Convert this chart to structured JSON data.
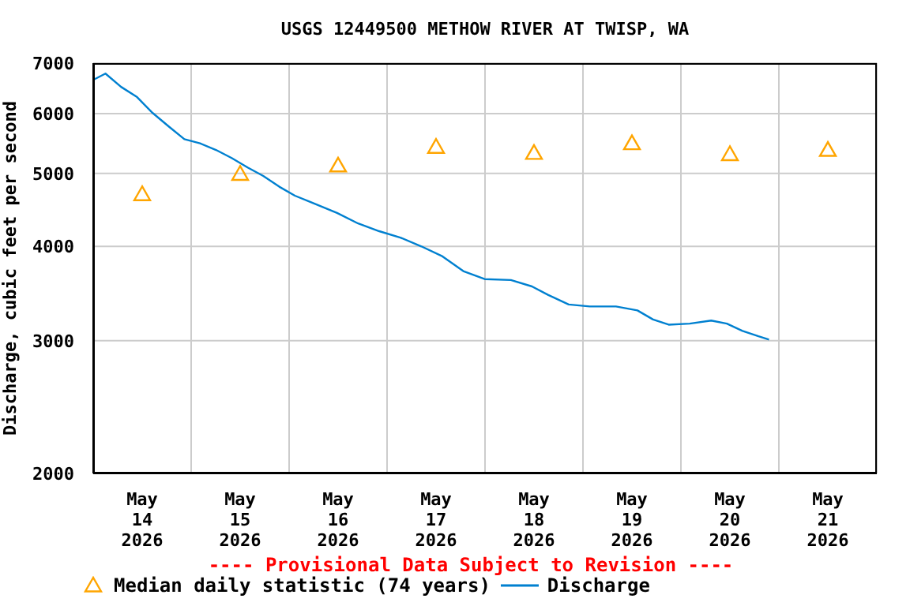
{
  "chart_data": {
    "type": "line",
    "title": "USGS 12449500 METHOW RIVER AT TWISP, WA",
    "ylabel": "Discharge, cubic feet per second",
    "annotations": [
      "---- Provisional Data Subject to Revision ----"
    ],
    "log": "y",
    "grid": true,
    "legend": "bottom",
    "xlim": [
      "2026-05-14T00:00",
      "2026-05-22T00:00"
    ],
    "xticks": [
      {
        "value": "2026-05-14T00:00",
        "label": null
      },
      {
        "value": "2026-05-14T12:00",
        "label": "May\n14\n2026"
      },
      {
        "value": "2026-05-15T00:00",
        "label": null
      },
      {
        "value": "2026-05-15T12:00",
        "label": "May\n15\n2026"
      },
      {
        "value": "2026-05-16T00:00",
        "label": null
      },
      {
        "value": "2026-05-16T12:00",
        "label": "May\n16\n2026"
      },
      {
        "value": "2026-05-17T00:00",
        "label": null
      },
      {
        "value": "2026-05-17T12:00",
        "label": "May\n17\n2026"
      },
      {
        "value": "2026-05-18T00:00",
        "label": null
      },
      {
        "value": "2026-05-18T12:00",
        "label": "May\n18\n2026"
      },
      {
        "value": "2026-05-19T00:00",
        "label": null
      },
      {
        "value": "2026-05-19T12:00",
        "label": "May\n19\n2026"
      },
      {
        "value": "2026-05-20T00:00",
        "label": null
      },
      {
        "value": "2026-05-20T12:00",
        "label": "May\n20\n2026"
      },
      {
        "value": "2026-05-21T00:00",
        "label": null
      },
      {
        "value": "2026-05-21T12:00",
        "label": "May\n21\n2026"
      },
      {
        "value": "2026-05-22T00:00",
        "label": null
      }
    ],
    "ylim": [
      2000,
      7000
    ],
    "yticks": [
      2000,
      3000,
      4000,
      5000,
      6000,
      7000
    ],
    "series": [
      {
        "name": "Median daily statistic (74 years)",
        "type": "scatter",
        "marker": "triangle",
        "color": "#ffa500",
        "x": [
          "2026-05-14T12:00",
          "2026-05-15T12:00",
          "2026-05-16T12:00",
          "2026-05-17T12:00",
          "2026-05-18T12:00",
          "2026-05-19T12:00",
          "2026-05-20T12:00",
          "2026-05-21T12:00"
        ],
        "values": [
          4690,
          4990,
          5120,
          5420,
          5320,
          5480,
          5300,
          5370
        ]
      },
      {
        "name": "Discharge",
        "type": "line",
        "color": "#0080d0",
        "x": [
          "2026-05-14T00:00",
          "2026-05-14T03:00",
          "2026-05-14T06:50",
          "2026-05-14T10:45",
          "2026-05-14T14:35",
          "2026-05-14T18:30",
          "2026-05-14T22:20",
          "2026-05-15T02:10",
          "2026-05-15T06:05",
          "2026-05-15T09:55",
          "2026-05-15T13:50",
          "2026-05-15T17:40",
          "2026-05-15T21:35",
          "2026-05-16T01:25",
          "2026-05-16T06:35",
          "2026-05-16T11:45",
          "2026-05-16T16:55",
          "2026-05-16T22:05",
          "2026-05-17T03:15",
          "2026-05-17T08:25",
          "2026-05-17T13:35",
          "2026-05-17T18:40",
          "2026-05-17T23:55",
          "2026-05-18T06:20",
          "2026-05-18T11:30",
          "2026-05-18T15:25",
          "2026-05-18T20:30",
          "2026-05-19T01:40",
          "2026-05-19T08:05",
          "2026-05-19T13:20",
          "2026-05-19T17:10",
          "2026-05-19T21:00",
          "2026-05-20T02:10",
          "2026-05-20T07:25",
          "2026-05-20T11:15",
          "2026-05-20T15:05",
          "2026-05-20T19:00",
          "2026-05-20T21:35"
        ],
        "values": [
          6650,
          6780,
          6510,
          6310,
          6010,
          5770,
          5550,
          5480,
          5370,
          5240,
          5090,
          4960,
          4800,
          4670,
          4550,
          4430,
          4290,
          4190,
          4110,
          4000,
          3880,
          3710,
          3620,
          3610,
          3540,
          3450,
          3350,
          3330,
          3330,
          3290,
          3200,
          3150,
          3160,
          3190,
          3160,
          3090,
          3040,
          3010
        ]
      }
    ]
  }
}
